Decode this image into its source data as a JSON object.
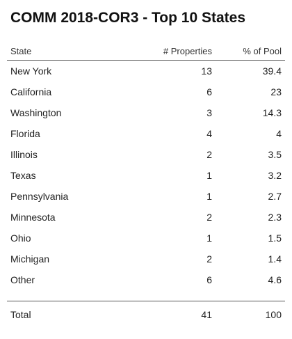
{
  "title": "COMM 2018-COR3 - Top 10 States",
  "columns": {
    "state": "State",
    "properties": "# Properties",
    "pool": "% of Pool"
  },
  "rows": [
    {
      "state": "New York",
      "properties": "13",
      "pool": "39.4"
    },
    {
      "state": "California",
      "properties": "6",
      "pool": "23"
    },
    {
      "state": "Washington",
      "properties": "3",
      "pool": "14.3"
    },
    {
      "state": "Florida",
      "properties": "4",
      "pool": "4"
    },
    {
      "state": "Illinois",
      "properties": "2",
      "pool": "3.5"
    },
    {
      "state": "Texas",
      "properties": "1",
      "pool": "3.2"
    },
    {
      "state": "Pennsylvania",
      "properties": "1",
      "pool": "2.7"
    },
    {
      "state": "Minnesota",
      "properties": "2",
      "pool": "2.3"
    },
    {
      "state": "Ohio",
      "properties": "1",
      "pool": "1.5"
    },
    {
      "state": "Michigan",
      "properties": "2",
      "pool": "1.4"
    },
    {
      "state": "Other",
      "properties": "6",
      "pool": "4.6"
    }
  ],
  "total": {
    "label": "Total",
    "properties": "41",
    "pool": "100"
  }
}
